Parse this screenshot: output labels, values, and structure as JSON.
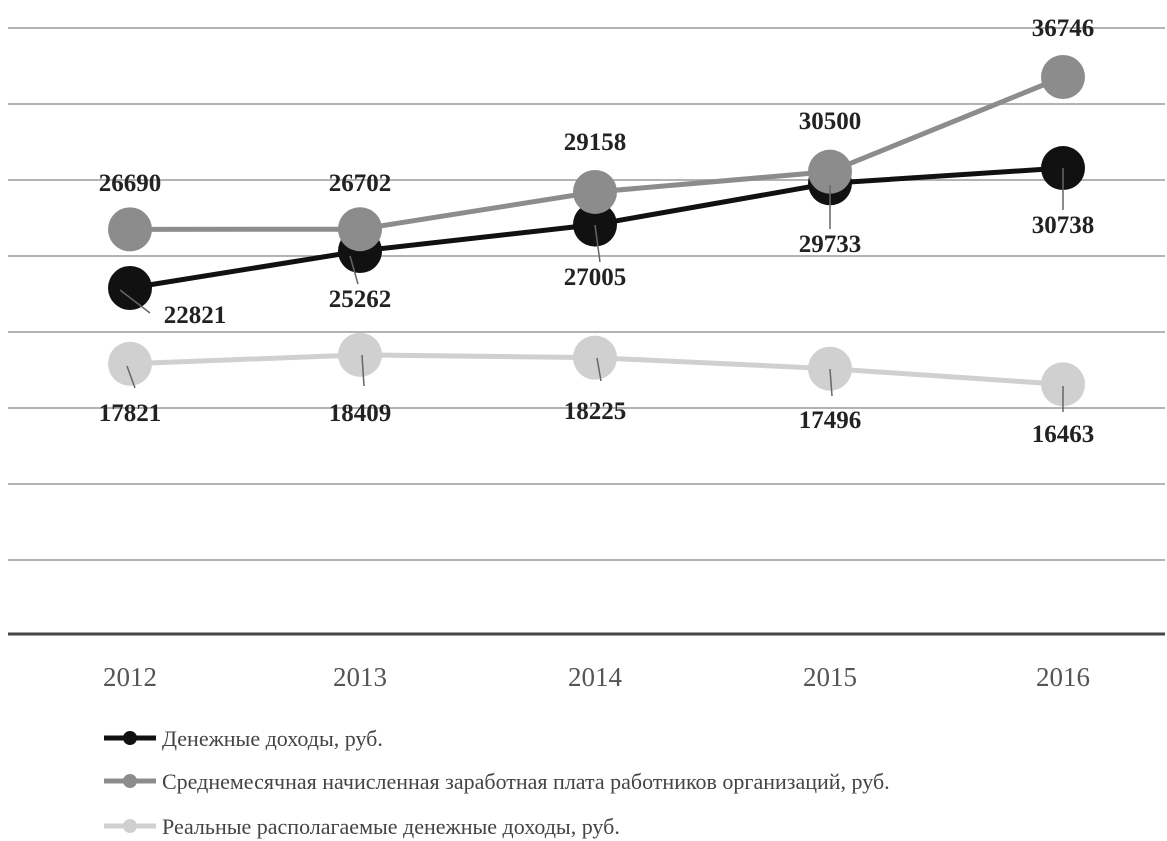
{
  "chart_data": {
    "type": "line",
    "x": [
      "2012",
      "2013",
      "2014",
      "2015",
      "2016"
    ],
    "series": [
      {
        "name": "Денежные доходы, руб.",
        "values": [
          22821,
          25262,
          27005,
          29733,
          30738
        ],
        "color": "#111111"
      },
      {
        "name": "Среднемесячная начисленная заработная плата работников организаций, руб.",
        "values": [
          26690,
          26702,
          29158,
          30500,
          36746
        ],
        "color": "#8c8c8c"
      },
      {
        "name": "Реальные располагаемые денежные доходы, руб.",
        "values": [
          17821,
          18409,
          18225,
          17496,
          16463
        ],
        "color": "#d0d0d0"
      }
    ],
    "legend_position": "bottom-left",
    "grid": true,
    "title": "",
    "xlabel": "",
    "ylabel": ""
  }
}
